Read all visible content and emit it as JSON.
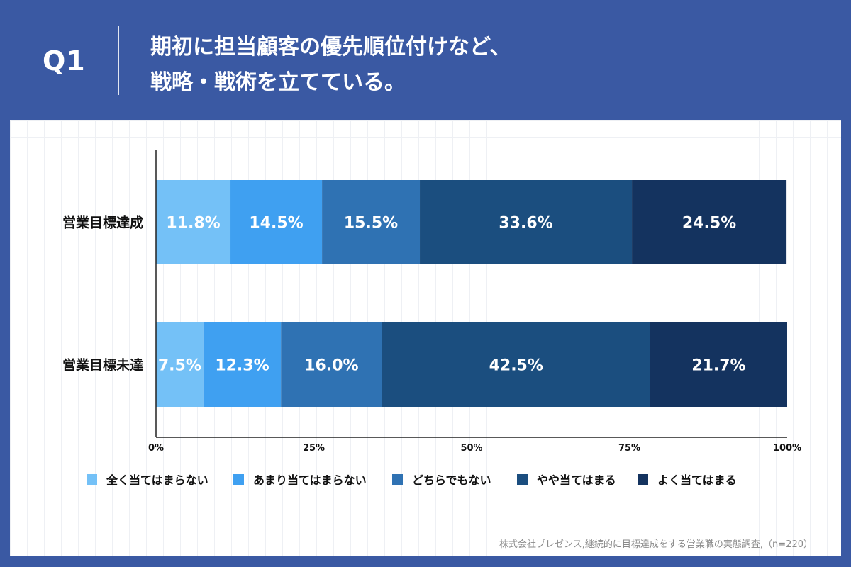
{
  "header": {
    "question_label": "Q1",
    "title_line1": "期初に担当顧客の優先順位付けなど、",
    "title_line2": "戦略・戦術を立てている。"
  },
  "chart_data": {
    "type": "bar",
    "orientation": "horizontal-stacked-100",
    "categories": [
      "営業目標達成",
      "営業目標未達"
    ],
    "series": [
      {
        "name": "全く当てはまらない",
        "color": "#74c1f7",
        "values": [
          11.8,
          7.5
        ]
      },
      {
        "name": "あまり当てはまらない",
        "color": "#3fa0f1",
        "values": [
          14.5,
          12.3
        ]
      },
      {
        "name": "どちらでもない",
        "color": "#2f72b3",
        "values": [
          15.5,
          16.0
        ]
      },
      {
        "name": "やや当てはまる",
        "color": "#1b4e7f",
        "values": [
          33.6,
          42.5
        ]
      },
      {
        "name": "よく当てはまる",
        "color": "#14335f",
        "values": [
          24.5,
          21.7
        ]
      }
    ],
    "value_labels": [
      [
        "11.8%",
        "14.5%",
        "15.5%",
        "33.6%",
        "24.5%"
      ],
      [
        "7.5%",
        "12.3%",
        "16.0%",
        "42.5%",
        "21.7%"
      ]
    ],
    "x_ticks": [
      "0%",
      "25%",
      "50%",
      "75%",
      "100%"
    ],
    "xlim": [
      0,
      100
    ],
    "legend_position": "bottom",
    "grid": false
  },
  "source_note": "株式会社プレゼンス,継続的に目標達成をする営業職の実態調査,（n=220）"
}
